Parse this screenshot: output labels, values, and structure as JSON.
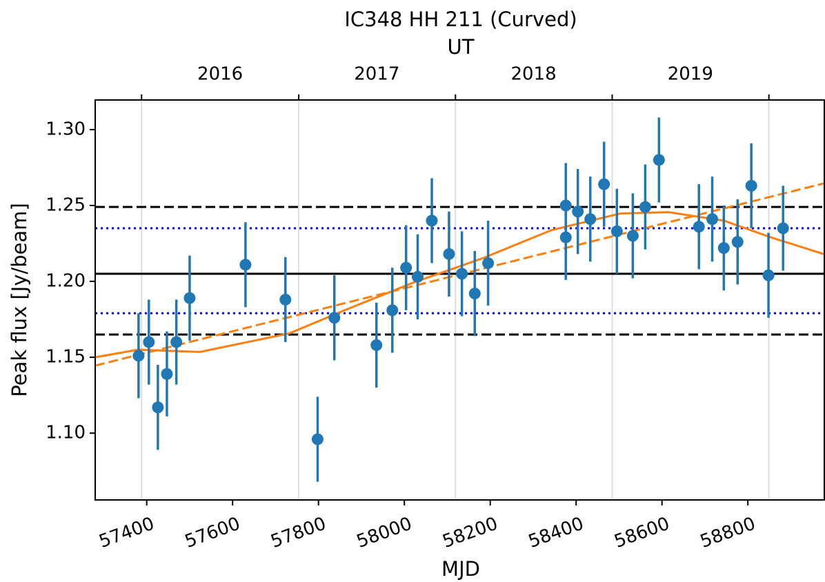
{
  "chart_data": {
    "type": "scatter",
    "title": "IC348 HH 211 (Curved)",
    "xlabel": "MJD",
    "ylabel": "Peak flux [Jy/beam]",
    "xlim": [
      57280,
      58978
    ],
    "ylim": [
      1.056,
      1.3195
    ],
    "xticks": [
      57400,
      57600,
      57800,
      58000,
      58200,
      58400,
      58600,
      58800
    ],
    "yticks": [
      {
        "value": 1.1,
        "label": "1.10"
      },
      {
        "value": 1.15,
        "label": "1.15"
      },
      {
        "value": 1.2,
        "label": "1.20"
      },
      {
        "value": 1.25,
        "label": "1.25"
      },
      {
        "value": 1.3,
        "label": "1.30"
      }
    ],
    "top_axis": {
      "label": "UT",
      "ticks": [
        57388,
        57754,
        58119,
        58484,
        58849
      ],
      "tick_labels": [
        {
          "value": 57571,
          "label": "2016"
        },
        {
          "value": 57936,
          "label": "2017"
        },
        {
          "value": 58301,
          "label": "2018"
        },
        {
          "value": 58666,
          "label": "2019"
        }
      ],
      "grid": true
    },
    "series": [
      {
        "color": "#1f77b4",
        "x": [
          57381,
          57405,
          57426,
          57447,
          57469,
          57500,
          57630,
          57723,
          57798,
          57837,
          57935,
          57972,
          58004,
          58031,
          58064,
          58104,
          58134,
          58164,
          58195,
          58376,
          58376,
          58404,
          58433,
          58465,
          58495,
          58532,
          58561,
          58593,
          58686,
          58717,
          58744,
          58776,
          58808,
          58848,
          58882
        ],
        "values": [
          1.151,
          1.16,
          1.117,
          1.139,
          1.16,
          1.189,
          1.211,
          1.188,
          1.096,
          1.176,
          1.158,
          1.181,
          1.209,
          1.203,
          1.24,
          1.218,
          1.205,
          1.192,
          1.212,
          1.25,
          1.229,
          1.246,
          1.241,
          1.264,
          1.233,
          1.23,
          1.249,
          1.28,
          1.236,
          1.241,
          1.222,
          1.226,
          1.263,
          1.204,
          1.235
        ],
        "errors": [
          0.028,
          0.028,
          0.028,
          0.028,
          0.028,
          0.028,
          0.028,
          0.028,
          0.028,
          0.028,
          0.028,
          0.028,
          0.028,
          0.028,
          0.028,
          0.028,
          0.028,
          0.028,
          0.028,
          0.028,
          0.028,
          0.028,
          0.028,
          0.028,
          0.028,
          0.028,
          0.028,
          0.028,
          0.028,
          0.028,
          0.028,
          0.028,
          0.028,
          0.028,
          0.028
        ]
      }
    ],
    "hlines": [
      {
        "value": 1.205,
        "color": "#000000",
        "style": "solid"
      },
      {
        "value": 1.249,
        "color": "#000000",
        "style": "dashed"
      },
      {
        "value": 1.165,
        "color": "#000000",
        "style": "dashed"
      },
      {
        "value": 1.235,
        "color": "#0000ff",
        "style": "dotted"
      },
      {
        "value": 1.179,
        "color": "#0000ff",
        "style": "dotted"
      }
    ],
    "fits": [
      {
        "color": "#ff7f0e",
        "style": "dashed",
        "x": [
          57280,
          58978
        ],
        "values": [
          1.1445,
          1.2646
        ]
      },
      {
        "color": "#ff7f0e",
        "style": "solid",
        "x": [
          57280,
          57380,
          57524,
          57733,
          57861,
          58022,
          58182,
          58343,
          58503,
          58615,
          58744,
          58856,
          58978
        ],
        "values": [
          1.15,
          1.155,
          1.1535,
          1.1658,
          1.181,
          1.1993,
          1.2152,
          1.2338,
          1.2447,
          1.2456,
          1.24,
          1.2288,
          1.2179
        ]
      }
    ]
  }
}
